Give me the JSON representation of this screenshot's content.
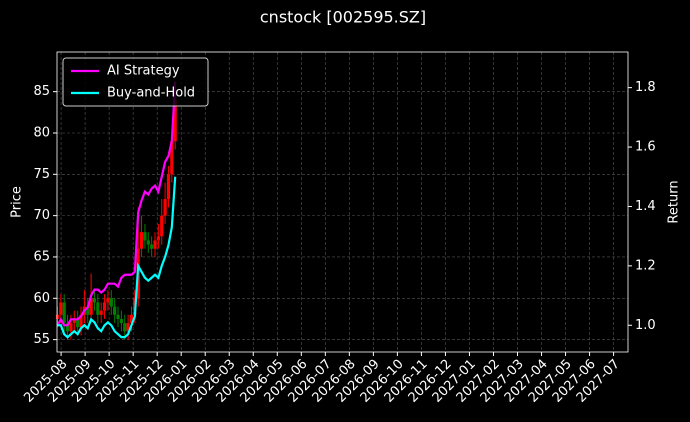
{
  "chart_data": {
    "type": "candlestick",
    "title": "cnstock [002595.SZ]",
    "ylabel": "Price",
    "y2label": "Return",
    "x": [
      -0.15,
      -0.01,
      0.13,
      0.27,
      0.41,
      0.55,
      0.69,
      0.83,
      0.97,
      1.11,
      1.25,
      1.39,
      1.53,
      1.67,
      1.81,
      1.95,
      2.09,
      2.23,
      2.37,
      2.51,
      2.65,
      2.79,
      2.93,
      3.07,
      3.21,
      3.35,
      3.49,
      3.63,
      3.77,
      3.91,
      4.05,
      4.19,
      4.33,
      4.47,
      4.61,
      4.75
    ],
    "open": [
      57.5,
      58,
      59.5,
      57,
      56,
      57,
      57.5,
      56.5,
      58,
      59,
      58,
      60,
      59.5,
      58,
      58.5,
      59.5,
      60,
      59,
      58,
      57.5,
      57,
      56,
      57,
      58,
      60,
      66,
      68,
      67,
      66.5,
      66,
      67,
      67.5,
      70,
      72,
      75,
      79
    ],
    "high": [
      59,
      60.5,
      60.5,
      58,
      58,
      58.5,
      58.5,
      59,
      61,
      60,
      63,
      61,
      60.5,
      59.5,
      60.5,
      61,
      61,
      60,
      59,
      58.5,
      58,
      58,
      59,
      61,
      71,
      70,
      69,
      68,
      67.5,
      68,
      69,
      72,
      74,
      76,
      80,
      86
    ],
    "low": [
      56.5,
      57,
      56,
      55,
      55,
      56,
      55.5,
      55.5,
      57,
      57,
      57,
      58.5,
      57,
      57,
      57.5,
      58.5,
      58,
      57,
      56.5,
      56,
      55,
      55,
      56,
      57,
      59,
      65,
      66,
      65.5,
      65,
      65,
      66,
      66.5,
      69,
      71,
      74,
      78
    ],
    "close": [
      58,
      59.5,
      57,
      56,
      57,
      57.5,
      56.5,
      58,
      59,
      58,
      60,
      59.5,
      58,
      58.5,
      59.5,
      60,
      59,
      58,
      57.5,
      57,
      56,
      57,
      58,
      60,
      66,
      68,
      67,
      66.5,
      66,
      67,
      67.5,
      70,
      72,
      75,
      79,
      84
    ],
    "up_color": "#ff0000",
    "down_color": "#008000",
    "series": [
      {
        "name": "AI Strategy",
        "color": "#ff00ff",
        "axis": "y2",
        "values": [
          1.0,
          1.02,
          1.0,
          1.0,
          1.02,
          1.02,
          1.02,
          1.03,
          1.05,
          1.06,
          1.1,
          1.12,
          1.12,
          1.11,
          1.12,
          1.14,
          1.14,
          1.14,
          1.13,
          1.16,
          1.17,
          1.17,
          1.17,
          1.18,
          1.38,
          1.42,
          1.45,
          1.44,
          1.46,
          1.47,
          1.45,
          1.5,
          1.55,
          1.57,
          1.62,
          1.82
        ]
      },
      {
        "name": "Buy-and-Hold",
        "color": "#00ffff",
        "axis": "y2",
        "values": [
          1.0,
          1.0,
          0.97,
          0.96,
          0.97,
          0.98,
          0.97,
          0.99,
          1.0,
          0.99,
          1.02,
          1.01,
          0.99,
          0.98,
          1.0,
          1.01,
          1.0,
          0.98,
          0.97,
          0.96,
          0.96,
          0.97,
          1.0,
          1.03,
          1.2,
          1.18,
          1.16,
          1.15,
          1.16,
          1.17,
          1.16,
          1.2,
          1.23,
          1.27,
          1.33,
          1.5
        ]
      }
    ],
    "xlim": [
      -0.17,
      23.6
    ],
    "xticks": [
      {
        "value": 0,
        "label": "2025-08"
      },
      {
        "value": 1,
        "label": "2025-09"
      },
      {
        "value": 2,
        "label": "2025-10"
      },
      {
        "value": 3,
        "label": "2025-11"
      },
      {
        "value": 4,
        "label": "2025-12"
      },
      {
        "value": 5,
        "label": "2026-01"
      },
      {
        "value": 6,
        "label": "2026-02"
      },
      {
        "value": 7,
        "label": "2026-03"
      },
      {
        "value": 8,
        "label": "2026-04"
      },
      {
        "value": 9,
        "label": "2026-05"
      },
      {
        "value": 10,
        "label": "2026-06"
      },
      {
        "value": 11,
        "label": "2026-07"
      },
      {
        "value": 12,
        "label": "2026-08"
      },
      {
        "value": 13,
        "label": "2026-09"
      },
      {
        "value": 14,
        "label": "2026-10"
      },
      {
        "value": 15,
        "label": "2026-11"
      },
      {
        "value": 16,
        "label": "2026-12"
      },
      {
        "value": 17,
        "label": "2027-01"
      },
      {
        "value": 18,
        "label": "2027-02"
      },
      {
        "value": 19,
        "label": "2027-03"
      },
      {
        "value": 20,
        "label": "2027-04"
      },
      {
        "value": 21,
        "label": "2027-05"
      },
      {
        "value": 22,
        "label": "2027-06"
      },
      {
        "value": 23,
        "label": "2027-07"
      }
    ],
    "ylim": [
      53.5,
      89.8
    ],
    "yticks": [
      55,
      60,
      65,
      70,
      75,
      80,
      85
    ],
    "y2lim": [
      0.91,
      1.92
    ],
    "y2ticks": [
      {
        "value": 1,
        "label": "1.0"
      },
      1.2,
      1.4,
      1.6,
      1.8
    ],
    "grid": true,
    "legend": "upper left"
  }
}
